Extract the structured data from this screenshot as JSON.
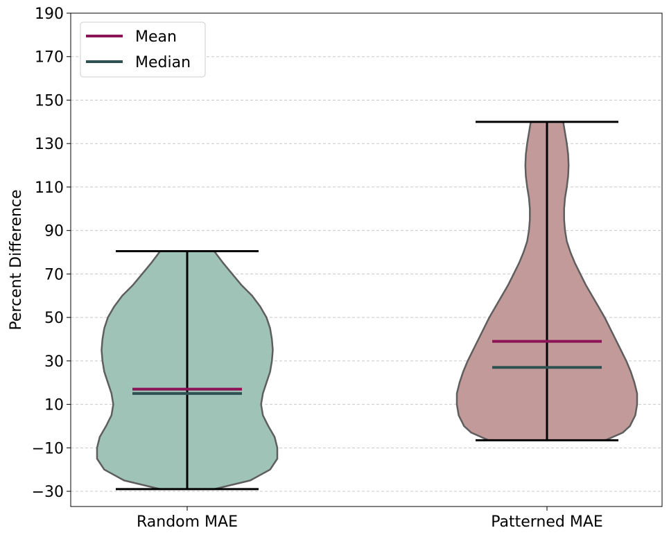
{
  "chart_data": {
    "type": "violin",
    "title": "",
    "xlabel": "",
    "ylabel": "Percent Difference",
    "ylim": [
      -37,
      190
    ],
    "yticks": [
      -30,
      -10,
      10,
      30,
      50,
      70,
      90,
      110,
      130,
      150,
      170,
      190
    ],
    "ytick_labels": [
      "−30",
      "−10",
      "10",
      "30",
      "50",
      "70",
      "90",
      "110",
      "130",
      "150",
      "170",
      "190"
    ],
    "grid": "horizontal-dashed",
    "legend_position": "top-left",
    "categories": [
      "Random MAE",
      "Patterned MAE"
    ],
    "series": [
      {
        "category": "Random MAE",
        "color": "#9fc3b6",
        "min": -29,
        "max": 80.5,
        "mean": 17,
        "median": 15,
        "density": [
          [
            -29,
            0.3
          ],
          [
            -25,
            0.7
          ],
          [
            -20,
            0.92
          ],
          [
            -15,
            1.0
          ],
          [
            -10,
            1.0
          ],
          [
            -5,
            0.97
          ],
          [
            0,
            0.9
          ],
          [
            5,
            0.84
          ],
          [
            10,
            0.82
          ],
          [
            15,
            0.84
          ],
          [
            20,
            0.88
          ],
          [
            25,
            0.92
          ],
          [
            30,
            0.94
          ],
          [
            35,
            0.95
          ],
          [
            40,
            0.94
          ],
          [
            45,
            0.92
          ],
          [
            50,
            0.88
          ],
          [
            55,
            0.81
          ],
          [
            60,
            0.72
          ],
          [
            65,
            0.6
          ],
          [
            70,
            0.5
          ],
          [
            75,
            0.4
          ],
          [
            80.5,
            0.3
          ]
        ]
      },
      {
        "category": "Patterned MAE",
        "color": "#c39a9a",
        "min": -6.5,
        "max": 140,
        "mean": 39,
        "median": 27,
        "density": [
          [
            -6.5,
            0.65
          ],
          [
            -3,
            0.84
          ],
          [
            0,
            0.92
          ],
          [
            5,
            0.98
          ],
          [
            10,
            1.0
          ],
          [
            15,
            1.0
          ],
          [
            20,
            0.97
          ],
          [
            25,
            0.93
          ],
          [
            30,
            0.88
          ],
          [
            35,
            0.82
          ],
          [
            40,
            0.76
          ],
          [
            45,
            0.7
          ],
          [
            50,
            0.64
          ],
          [
            55,
            0.57
          ],
          [
            60,
            0.5
          ],
          [
            65,
            0.43
          ],
          [
            70,
            0.37
          ],
          [
            75,
            0.31
          ],
          [
            80,
            0.26
          ],
          [
            85,
            0.22
          ],
          [
            90,
            0.2
          ],
          [
            95,
            0.19
          ],
          [
            100,
            0.19
          ],
          [
            105,
            0.2
          ],
          [
            110,
            0.22
          ],
          [
            115,
            0.235
          ],
          [
            120,
            0.24
          ],
          [
            125,
            0.235
          ],
          [
            130,
            0.22
          ],
          [
            135,
            0.2
          ],
          [
            140,
            0.18
          ]
        ]
      }
    ],
    "legend": [
      {
        "label": "Mean",
        "color": "#8b1356"
      },
      {
        "label": "Median",
        "color": "#2e5152"
      }
    ]
  }
}
